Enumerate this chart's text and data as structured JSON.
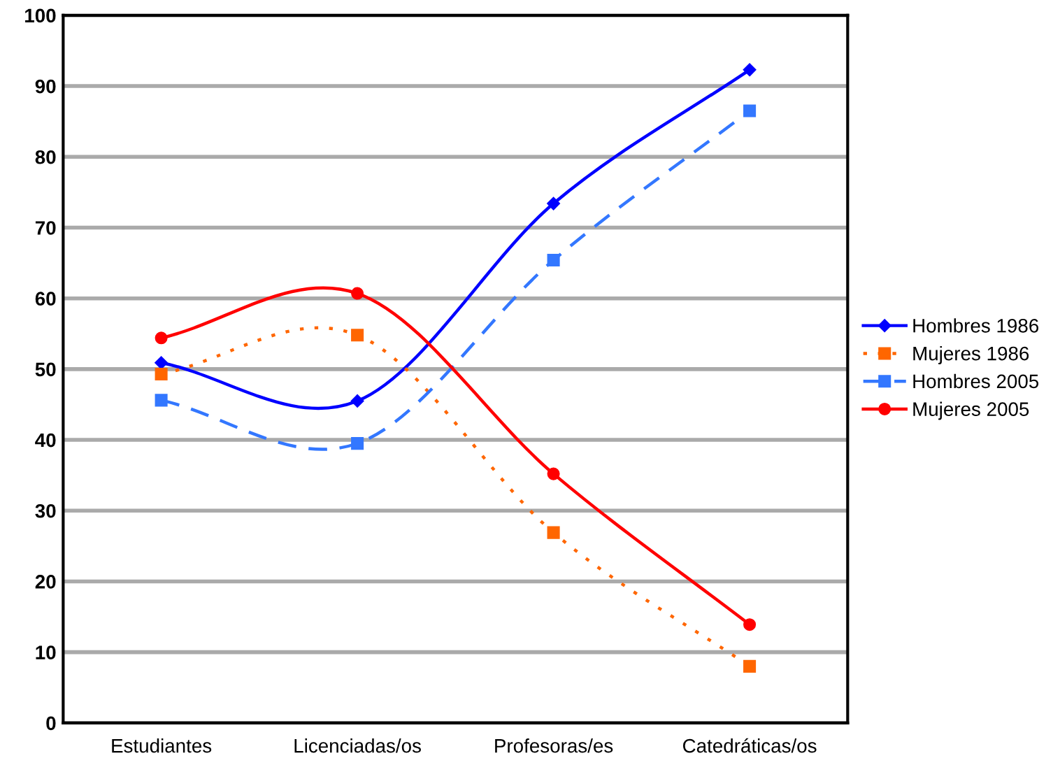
{
  "chart_data": {
    "type": "line",
    "categories": [
      "Estudiantes",
      "Licenciadas/os",
      "Profesoras/es",
      "Catedráticas/os"
    ],
    "series": [
      {
        "name": "Hombres 1986",
        "color": "#0000ff",
        "marker": "diamond",
        "line_style": "solid",
        "values": [
          50.9,
          45.5,
          73.4,
          92.3
        ]
      },
      {
        "name": "Mujeres 1986",
        "color": "#ff6600",
        "marker": "square",
        "line_style": "dotted",
        "values": [
          49.3,
          54.8,
          26.9,
          8.0
        ]
      },
      {
        "name": "Hombres 2005",
        "color": "#3377ff",
        "marker": "square",
        "line_style": "dashed",
        "values": [
          45.6,
          39.5,
          65.4,
          86.5
        ]
      },
      {
        "name": "Mujeres 2005",
        "color": "#ff0000",
        "marker": "circle",
        "line_style": "solid",
        "values": [
          54.4,
          60.7,
          35.2,
          13.9
        ]
      }
    ],
    "ylim": [
      0,
      100
    ],
    "yticks": [
      0,
      10,
      20,
      30,
      40,
      50,
      60,
      70,
      80,
      90,
      100
    ],
    "grid": "y",
    "legend": "right"
  }
}
